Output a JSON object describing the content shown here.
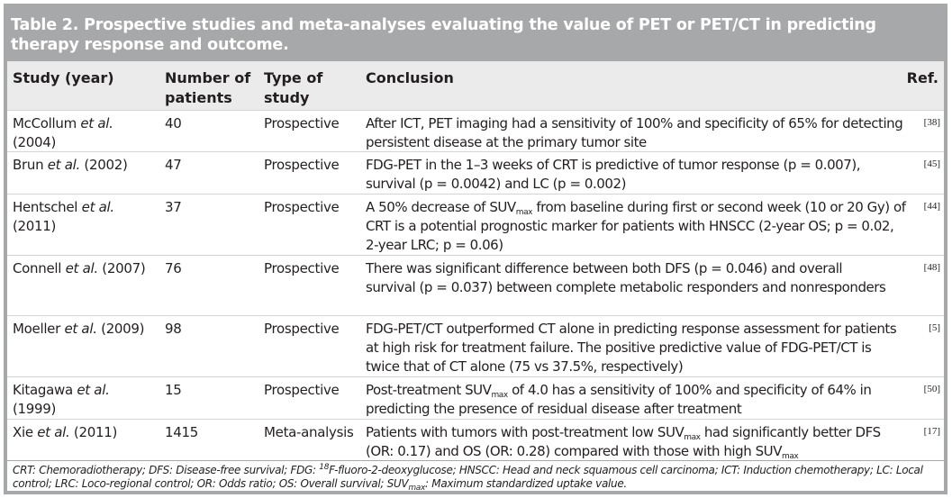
{
  "table": {
    "title": "Table 2. Prospective studies and meta-analyses evaluating the value of PET or PET/CT in predicting therapy response and outcome.",
    "headers": {
      "study": "Study (year)",
      "patients": "Number of patients",
      "type": "Type of study",
      "conclusion": "Conclusion",
      "ref": "Ref."
    },
    "rows": [
      {
        "author": "McCollum ",
        "etal": "et al.",
        "year": " (2004)",
        "patients": "40",
        "type": "Prospective",
        "conclusion_a": "After ICT, PET imaging had a sensitivity of 100% and specificity of 65% for detecting persistent disease at the primary tumor site",
        "ref": "[38]"
      },
      {
        "author": "Brun ",
        "etal": "et al.",
        "year": " (2002)",
        "patients": "47",
        "type": "Prospective",
        "conclusion_a": "FDG-PET in the 1–3 weeks of CRT is predictive of tumor response (p = 0.007), survival (p = 0.0042) and LC (p = 0.002)",
        "ref": "[45]"
      },
      {
        "author": "Hentschel ",
        "etal": "et al.",
        "year": " (2011)",
        "patients": "37",
        "type": "Prospective",
        "conclusion_a": "A 50% decrease of SUV",
        "conclusion_sub": "max",
        "conclusion_b": " from baseline during first or second week (10 or 20 Gy) of CRT is a potential prognostic marker for patients with HNSCC (2-year OS; p = 0.02, 2-year LRC; p = 0.06)",
        "ref": "[44]"
      },
      {
        "author": "Connell ",
        "etal": "et al.",
        "year": " (2007)",
        "patients": "76",
        "type": "Prospective",
        "conclusion_a": "There was significant difference between both DFS (p = 0.046) and overall survival (p = 0.037) between complete metabolic responders and nonresponders",
        "ref": "[48]"
      },
      {
        "author": "Moeller ",
        "etal": "et al.",
        "year": " (2009)",
        "patients": "98",
        "type": "Prospective",
        "conclusion_a": "FDG-PET/CT outperformed CT alone in predicting response assessment for patients at high risk for treatment failure. The positive predictive value of FDG-PET/CT is twice that of CT alone (75 vs 37.5%, respectively)",
        "ref": "[5]"
      },
      {
        "author": "Kitagawa ",
        "etal": "et al.",
        "year": " (1999)",
        "patients": "15",
        "type": "Prospective",
        "conclusion_a": "Post-treatment SUV",
        "conclusion_sub": "max",
        "conclusion_b": " of 4.0 has a sensitivity of 100% and specificity of 64% in predicting the presence of residual disease after treatment",
        "ref": "[50]"
      },
      {
        "author": "Xie ",
        "etal": "et al.",
        "year": " (2011)",
        "patients": "1415",
        "type": "Meta-analysis",
        "conclusion_a": "Patients with tumors with post-treatment low SUV",
        "conclusion_sub": "max",
        "conclusion_b": " had significantly better DFS (OR: 0.17) and OS (OR: 0.28) compared with those with high SUV",
        "conclusion_sub2": "max",
        "ref": "[17]"
      }
    ],
    "footnote": {
      "part1": "CRT: Chemoradiotherapy; DFS: Disease-free survival; FDG: ",
      "sup": "18",
      "part2": "F-fluoro-2-deoxyglucose; HNSCC: Head and neck squamous cell carcinoma; ICT: Induction chemotherapy; LC: Local control; LRC: Loco-regional control; OR: Odds ratio; OS: Overall survival; SUV",
      "sub": "max",
      "part3": ": Maximum standardized uptake value."
    }
  }
}
